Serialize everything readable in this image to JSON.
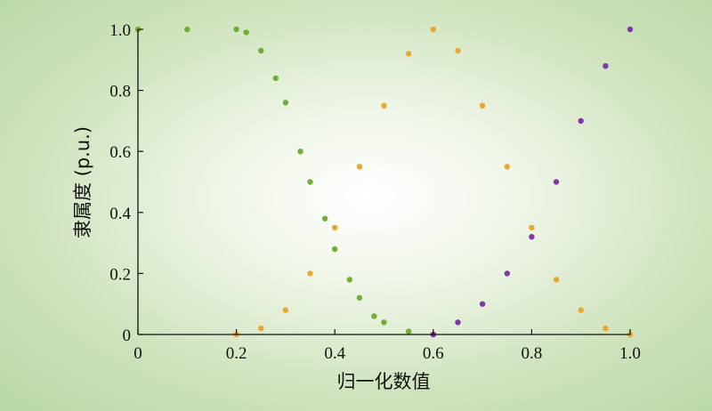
{
  "chart_data": {
    "type": "scatter",
    "title": "",
    "xlabel": "归一化数值",
    "ylabel": "隶属度 (p.u.)",
    "xlim": [
      0,
      1.0
    ],
    "ylim": [
      0,
      1.0
    ],
    "x_ticks": [
      "0",
      "0.2",
      "0.4",
      "0.6",
      "0.8",
      "1.0"
    ],
    "y_ticks": [
      "0",
      "0.2",
      "0.4",
      "0.6",
      "0.8",
      "1.0"
    ],
    "grid": false,
    "legend": "none",
    "series": [
      {
        "color": "#6aaa2e",
        "description": "decreasing membership: 1.0 from 0 to 0.2, falling to 0 near 0.6",
        "points": [
          [
            0.0,
            1.0
          ],
          [
            0.1,
            1.0
          ],
          [
            0.2,
            1.0
          ],
          [
            0.22,
            0.99
          ],
          [
            0.25,
            0.93
          ],
          [
            0.28,
            0.84
          ],
          [
            0.3,
            0.76
          ],
          [
            0.33,
            0.6
          ],
          [
            0.35,
            0.5
          ],
          [
            0.38,
            0.38
          ],
          [
            0.4,
            0.28
          ],
          [
            0.43,
            0.18
          ],
          [
            0.45,
            0.12
          ],
          [
            0.48,
            0.06
          ],
          [
            0.5,
            0.04
          ],
          [
            0.55,
            0.01
          ],
          [
            0.6,
            0.0
          ]
        ]
      },
      {
        "color": "#e8a328",
        "description": "triangular membership peaking at 0.6",
        "points": [
          [
            0.2,
            0.0
          ],
          [
            0.25,
            0.02
          ],
          [
            0.3,
            0.08
          ],
          [
            0.35,
            0.2
          ],
          [
            0.4,
            0.35
          ],
          [
            0.45,
            0.55
          ],
          [
            0.5,
            0.75
          ],
          [
            0.55,
            0.92
          ],
          [
            0.6,
            1.0
          ],
          [
            0.65,
            0.93
          ],
          [
            0.7,
            0.75
          ],
          [
            0.75,
            0.55
          ],
          [
            0.8,
            0.35
          ],
          [
            0.85,
            0.18
          ],
          [
            0.9,
            0.08
          ],
          [
            0.95,
            0.02
          ],
          [
            1.0,
            0.0
          ]
        ]
      },
      {
        "color": "#7a2ea6",
        "description": "increasing membership: 0 near 0.6, rising to 1.0 at 1.0",
        "points": [
          [
            0.6,
            0.0
          ],
          [
            0.65,
            0.04
          ],
          [
            0.7,
            0.1
          ],
          [
            0.75,
            0.2
          ],
          [
            0.8,
            0.32
          ],
          [
            0.85,
            0.5
          ],
          [
            0.9,
            0.7
          ],
          [
            0.95,
            0.88
          ],
          [
            1.0,
            1.0
          ]
        ]
      }
    ]
  }
}
